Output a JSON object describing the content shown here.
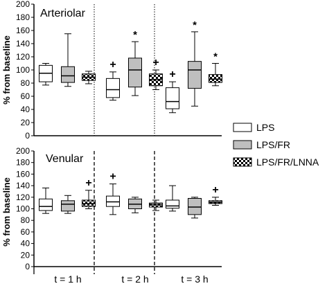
{
  "colors": {
    "LPS": "#ffffff",
    "LPS/FR": "#bfbfbf",
    "LPS/FR/LNNA": "checker"
  },
  "legend": {
    "position": "right-middle",
    "items": [
      {
        "name": "LPS",
        "fill": "white"
      },
      {
        "name": "LPS/FR",
        "fill": "gray"
      },
      {
        "name": "LPS/FR/LNNA",
        "fill": "checkered"
      }
    ]
  },
  "x_axis": {
    "labels": [
      "t = 1 h",
      "t = 2 h",
      "t = 3 h"
    ]
  },
  "chart_data": [
    {
      "type": "box",
      "title": "Arteriolar",
      "ylabel": "% from baseline",
      "ylim": [
        0,
        200
      ],
      "yticks": [
        0,
        20,
        40,
        60,
        80,
        100,
        120,
        140,
        160,
        180,
        200
      ],
      "categories": [
        "t = 1 h",
        "t = 2 h",
        "t = 3 h"
      ],
      "series": [
        {
          "name": "LPS",
          "boxes": [
            {
              "min": 77,
              "q1": 82,
              "median": 95,
              "q3": 107,
              "max": 110,
              "marker": ""
            },
            {
              "min": 54,
              "q1": 58,
              "median": 70,
              "q3": 87,
              "max": 97,
              "marker": "+"
            },
            {
              "min": 35,
              "q1": 41,
              "median": 52,
              "q3": 73,
              "max": 82,
              "marker": "+"
            }
          ]
        },
        {
          "name": "LPS/FR",
          "boxes": [
            {
              "min": 75,
              "q1": 81,
              "median": 91,
              "q3": 105,
              "max": 155,
              "marker": ""
            },
            {
              "min": 61,
              "q1": 74,
              "median": 100,
              "q3": 118,
              "max": 143,
              "marker": "*"
            },
            {
              "min": 45,
              "q1": 72,
              "median": 100,
              "q3": 113,
              "max": 158,
              "marker": "*"
            }
          ]
        },
        {
          "name": "LPS/FR/LNNA",
          "boxes": [
            {
              "min": 79,
              "q1": 84,
              "median": 89,
              "q3": 94,
              "max": 98,
              "marker": ""
            },
            {
              "min": 70,
              "q1": 76,
              "median": 85,
              "q3": 94,
              "max": 100,
              "marker": "+"
            },
            {
              "min": 76,
              "q1": 81,
              "median": 86,
              "q3": 93,
              "max": 110,
              "marker": "*"
            }
          ]
        }
      ]
    },
    {
      "type": "box",
      "title": "Venular",
      "ylabel": "% from baseline",
      "ylim": [
        0,
        200
      ],
      "yticks": [
        0,
        20,
        40,
        60,
        80,
        100,
        120,
        140,
        160,
        180,
        200
      ],
      "categories": [
        "t = 1 h",
        "t = 2 h",
        "t = 3 h"
      ],
      "series": [
        {
          "name": "LPS",
          "boxes": [
            {
              "min": 92,
              "q1": 97,
              "median": 104,
              "q3": 117,
              "max": 136,
              "marker": ""
            },
            {
              "min": 90,
              "q1": 104,
              "median": 112,
              "q3": 122,
              "max": 143,
              "marker": "+"
            },
            {
              "min": 96,
              "q1": 101,
              "median": 105,
              "q3": 115,
              "max": 140,
              "marker": ""
            }
          ]
        },
        {
          "name": "LPS/FR",
          "boxes": [
            {
              "min": 92,
              "q1": 96,
              "median": 108,
              "q3": 114,
              "max": 123,
              "marker": ""
            },
            {
              "min": 93,
              "q1": 100,
              "median": 108,
              "q3": 117,
              "max": 120,
              "marker": ""
            },
            {
              "min": 84,
              "q1": 90,
              "median": 103,
              "q3": 118,
              "max": 120,
              "marker": ""
            }
          ]
        },
        {
          "name": "LPS/FR/LNNA",
          "boxes": [
            {
              "min": 100,
              "q1": 104,
              "median": 109,
              "q3": 115,
              "max": 132,
              "marker": "+"
            },
            {
              "min": 97,
              "q1": 103,
              "median": 107,
              "q3": 110,
              "max": 115,
              "marker": ""
            },
            {
              "min": 106,
              "q1": 109,
              "median": 111,
              "q3": 114,
              "max": 120,
              "marker": "+"
            }
          ]
        }
      ]
    }
  ]
}
